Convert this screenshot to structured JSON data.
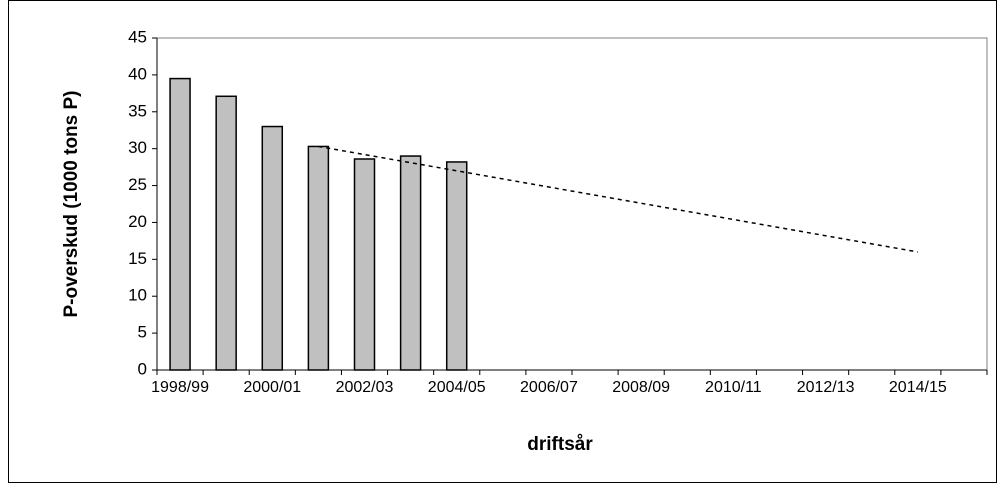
{
  "chart_data": {
    "type": "bar",
    "y_label": "P-overskud (1000 tons P)",
    "x_label": "driftsår",
    "categories": [
      "1998/99",
      null,
      "2000/01",
      null,
      "2002/03",
      null,
      "2004/05",
      null,
      "2006/07",
      null,
      "2008/09",
      null,
      "2010/11",
      null,
      "2012/13",
      null,
      "2014/15",
      null
    ],
    "series": [
      {
        "type": "bar",
        "color": "#c0c0c0",
        "values": [
          39.5,
          37.1,
          33.0,
          30.3,
          28.6,
          29.0,
          28.2,
          null,
          null,
          null,
          null,
          null,
          null,
          null,
          null,
          null,
          null,
          null
        ]
      },
      {
        "type": "line",
        "color": "#000000",
        "dashed": true,
        "values": [
          null,
          null,
          null,
          30.3,
          29.2,
          28.1,
          27.0,
          25.9,
          24.8,
          23.7,
          22.6,
          21.5,
          20.4,
          19.3,
          18.2,
          17.1,
          16.0,
          null
        ]
      }
    ],
    "ylim": [
      0,
      45
    ],
    "yticks": [
      0,
      5,
      10,
      15,
      20,
      25,
      30,
      35,
      40,
      45
    ]
  }
}
